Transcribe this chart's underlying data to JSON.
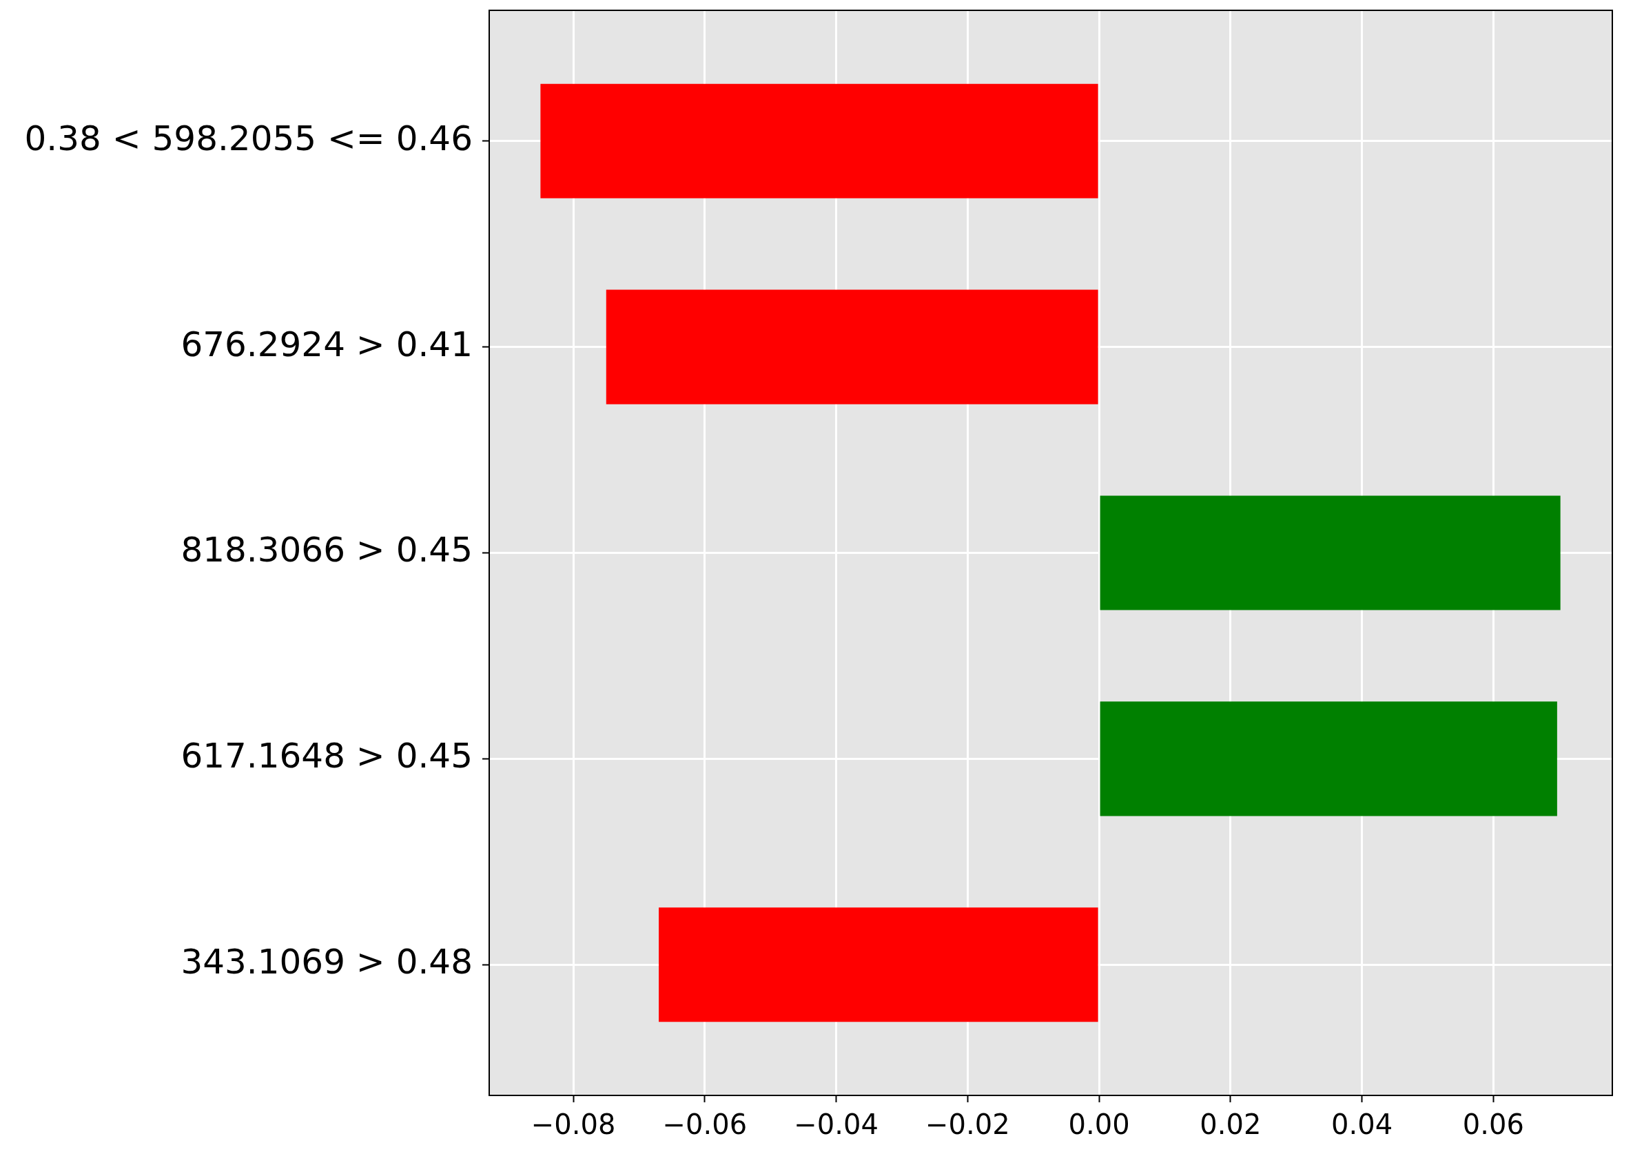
{
  "chart_data": {
    "type": "bar",
    "orientation": "horizontal",
    "categories": [
      "0.38 < 598.2055 <= 0.46",
      "676.2924 > 0.41",
      "818.3066 > 0.45",
      "617.1648 > 0.45",
      "343.1069 > 0.48"
    ],
    "values": [
      -0.085,
      -0.075,
      0.0702,
      0.0697,
      -0.067
    ],
    "colors": [
      "#ff0000",
      "#ff0000",
      "#008000",
      "#008000",
      "#ff0000"
    ],
    "xlim": [
      -0.0928,
      0.0781
    ],
    "xticks": [
      {
        "value": -0.08,
        "label": "−0.08"
      },
      {
        "value": -0.06,
        "label": "−0.06"
      },
      {
        "value": -0.04,
        "label": "−0.04"
      },
      {
        "value": -0.02,
        "label": "−0.02"
      },
      {
        "value": 0,
        "label": "0.00"
      },
      {
        "value": 0.02,
        "label": "0.02"
      },
      {
        "value": 0.04,
        "label": "0.04"
      },
      {
        "value": 0.06,
        "label": "0.06"
      }
    ],
    "grid": true
  }
}
